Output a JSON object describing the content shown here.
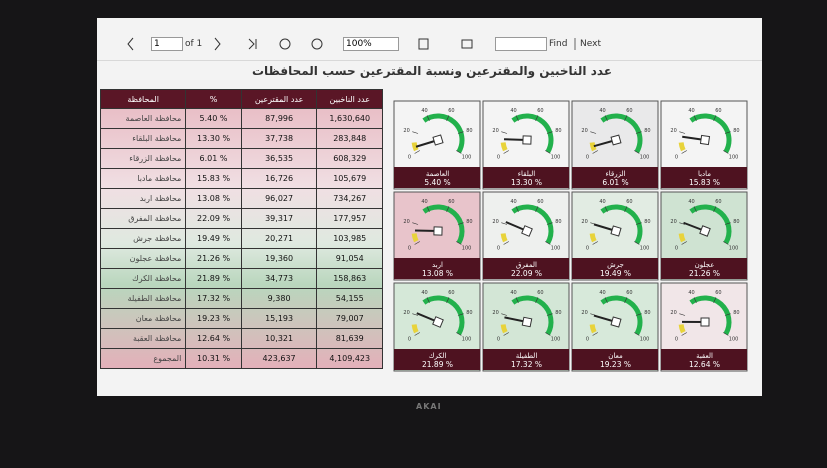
{
  "toolbar": {
    "page": "1",
    "page_of": "of 1",
    "zoom": "100%",
    "find": "Find",
    "next": "Next"
  },
  "report": {
    "title": "عدد الناخبين والمقترعين ونسبة المقترعين حسب المحافظات"
  },
  "table": {
    "header": [
      "المحافظة",
      "%",
      "عدد المقترعين",
      "عدد الناخبين"
    ],
    "rows": [
      [
        "محافظة العاصمة",
        "5.40 %",
        "87,996",
        "1,630,640"
      ],
      [
        "محافظة البلقاء",
        "13.30 %",
        "37,738",
        "283,848"
      ],
      [
        "محافظة الزرقاء",
        "6.01 %",
        "36,535",
        "608,329"
      ],
      [
        "محافظة مادبا",
        "15.83 %",
        "16,726",
        "105,679"
      ],
      [
        "محافظة اربد",
        "13.08 %",
        "96,027",
        "734,267"
      ],
      [
        "محافظة المفرق",
        "22.09 %",
        "39,317",
        "177,957"
      ],
      [
        "محافظة جرش",
        "19.49 %",
        "20,271",
        "103,985"
      ],
      [
        "محافظة عجلون",
        "21.26 %",
        "19,360",
        "91,054"
      ],
      [
        "محافظة الكرك",
        "21.89 %",
        "34,773",
        "158,863"
      ],
      [
        "محافظة الطفيلة",
        "17.32 %",
        "9,380",
        "54,155"
      ],
      [
        "محافظة معان",
        "19.23 %",
        "15,193",
        "79,007"
      ],
      [
        "محافظة العقبة",
        "12.64 %",
        "10,321",
        "81,639"
      ],
      [
        "المجموع",
        "10.31 %",
        "423,637",
        "4,109,423"
      ]
    ]
  },
  "gauges": {
    "range": [
      0,
      100
    ],
    "ticks": [
      0,
      20,
      40,
      60,
      80,
      100
    ],
    "items": [
      {
        "label": "العاصمة",
        "value": 5.4,
        "value_label": "5.40 %"
      },
      {
        "label": "البلقاء",
        "value": 13.3,
        "value_label": "13.30 %"
      },
      {
        "label": "الزرقاء",
        "value": 6.01,
        "value_label": "6.01 %"
      },
      {
        "label": "مادبا",
        "value": 15.83,
        "value_label": "15.83 %"
      },
      {
        "label": "اربد",
        "value": 13.08,
        "value_label": "13.08 %"
      },
      {
        "label": "المفرق",
        "value": 22.09,
        "value_label": "22.09 %"
      },
      {
        "label": "جرش",
        "value": 19.49,
        "value_label": "19.49 %"
      },
      {
        "label": "عجلون",
        "value": 21.26,
        "value_label": "21.26 %"
      },
      {
        "label": "الكرك",
        "value": 21.89,
        "value_label": "21.89 %"
      },
      {
        "label": "الطفيلة",
        "value": 17.32,
        "value_label": "17.32 %"
      },
      {
        "label": "معان",
        "value": 19.23,
        "value_label": "19.23 %"
      },
      {
        "label": "العقبة",
        "value": 12.64,
        "value_label": "12.64 %"
      }
    ]
  },
  "monitor": {
    "brand": "AKAI"
  }
}
